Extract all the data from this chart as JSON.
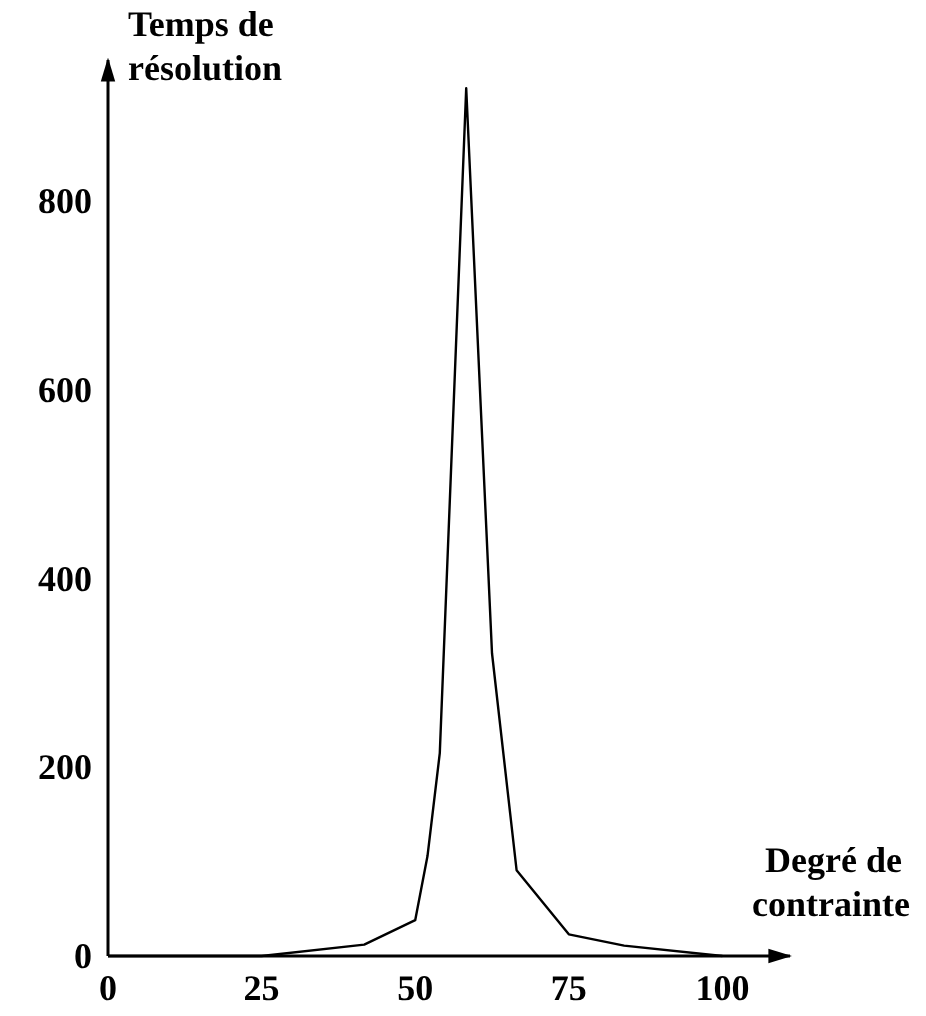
{
  "chart_data": {
    "type": "line",
    "xlabel": "Degré de contrainte",
    "ylabel": "Temps de résolution",
    "x": [
      0,
      25,
      41.7,
      50,
      52,
      54,
      58.3,
      62.5,
      66.5,
      75,
      84,
      100
    ],
    "values": [
      0,
      0,
      12,
      38,
      106,
      215,
      920,
      321,
      91,
      23,
      11,
      0
    ],
    "color": "#000000",
    "xlim": [
      0,
      111
    ],
    "ylim": [
      0,
      950
    ],
    "xticks": [
      0,
      25,
      50,
      75,
      100
    ],
    "yticks": [
      0,
      200,
      400,
      600,
      800
    ],
    "grid": false,
    "marker": "none",
    "line_style": "solid"
  }
}
